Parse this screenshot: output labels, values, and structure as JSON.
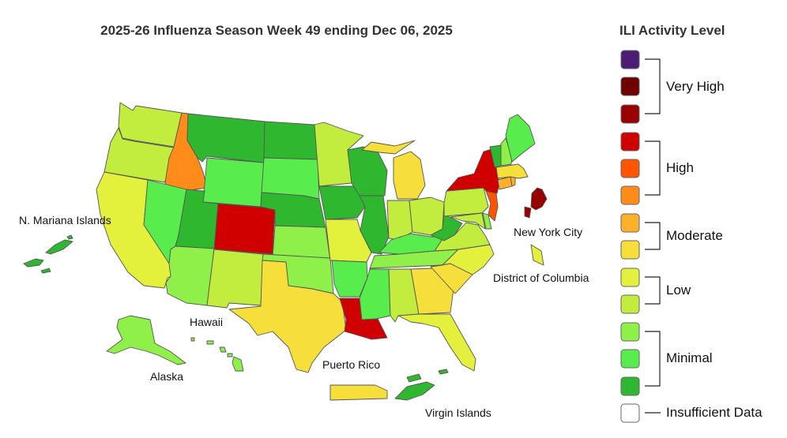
{
  "title": "2025-26 Influenza Season Week 49 ending Dec 06, 2025",
  "legend": {
    "title": "ILI Activity Level",
    "levels": [
      {
        "level": 13,
        "color": "#4b1d74"
      },
      {
        "level": 12,
        "color": "#6e0000"
      },
      {
        "level": 11,
        "color": "#990000"
      },
      {
        "level": 10,
        "color": "#d00000"
      },
      {
        "level": 9,
        "color": "#ff5500"
      },
      {
        "level": 8,
        "color": "#ff8c1a"
      },
      {
        "level": 7,
        "color": "#fdb12a"
      },
      {
        "level": 6,
        "color": "#f6df3a"
      },
      {
        "level": 5,
        "color": "#e3f03c"
      },
      {
        "level": 4,
        "color": "#c2ec3e"
      },
      {
        "level": 3,
        "color": "#8ef048"
      },
      {
        "level": 2,
        "color": "#58ec4c"
      },
      {
        "level": 1,
        "color": "#2fb82f"
      },
      {
        "level": 0,
        "color": "#ffffff"
      }
    ],
    "groups": [
      {
        "label": "Very High"
      },
      {
        "label": "High"
      },
      {
        "label": "Moderate"
      },
      {
        "label": "Low"
      },
      {
        "label": "Minimal"
      },
      {
        "label": "Insufficient Data"
      }
    ]
  },
  "territory_labels": {
    "nmi": "N. Mariana Islands",
    "nyc": "New York City",
    "dc": "District of Columbia",
    "hawaii": "Hawaii",
    "alaska": "Alaska",
    "pr": "Puerto Rico",
    "vi": "Virgin Islands"
  },
  "activity": {
    "WA": 4,
    "OR": 4,
    "CA": 5,
    "ID": 8,
    "NV": 2,
    "MT": 1,
    "WY": 2,
    "UT": 1,
    "AZ": 3,
    "CO": 10,
    "NM": 4,
    "ND": 1,
    "SD": 2,
    "NE": 1,
    "KS": 3,
    "OK": 3,
    "TX": 6,
    "MN": 4,
    "IA": 1,
    "MO": 5,
    "AR": 2,
    "LA": 10,
    "WI": 1,
    "IL": 1,
    "MI": 6,
    "IN": 4,
    "OH": 4,
    "KY": 2,
    "TN": 3,
    "MS": 2,
    "AL": 4,
    "GA": 6,
    "FL": 5,
    "SC": 6,
    "NC": 5,
    "VA": 4,
    "WV": 1,
    "PA": 4,
    "NY": 10,
    "NJ": 9,
    "DE": 3,
    "MD": 4,
    "CT": 7,
    "RI": 7,
    "MA": 6,
    "VT": 1,
    "NH": 3,
    "ME": 2,
    "NYC": 11,
    "DC": 5,
    "AK": 3,
    "HI": 3,
    "PR": 6,
    "VI": 1,
    "NMI": 1
  }
}
